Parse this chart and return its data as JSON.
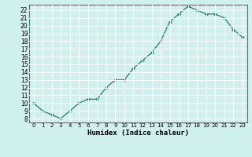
{
  "x": [
    0,
    1,
    2,
    3,
    4,
    5,
    6,
    7,
    8,
    9,
    10,
    11,
    12,
    13,
    14,
    15,
    16,
    17,
    18,
    19,
    20,
    21,
    22,
    23
  ],
  "humidex": [
    10,
    9,
    8.5,
    8,
    9,
    10,
    10.5,
    10.5,
    12,
    13,
    13,
    14.5,
    15.5,
    16.5,
    18,
    20.5,
    21.5,
    22.5,
    22,
    21.5,
    21.5,
    21,
    19.5,
    18.5
  ],
  "xlabel": "Humidex (Indice chaleur)",
  "line_color": "#2d7a6a",
  "marker_color": "#2d7a6a",
  "bg_color": "#cff0ee",
  "grid_color": "#ffffff",
  "ylim": [
    7.5,
    22.7
  ],
  "xlim": [
    -0.5,
    23.5
  ],
  "yticks": [
    8,
    9,
    10,
    11,
    12,
    13,
    14,
    15,
    16,
    17,
    18,
    19,
    20,
    21,
    22
  ],
  "xticks": [
    0,
    1,
    2,
    3,
    4,
    5,
    6,
    7,
    8,
    9,
    10,
    11,
    12,
    13,
    14,
    15,
    16,
    17,
    18,
    19,
    20,
    21,
    22,
    23
  ]
}
